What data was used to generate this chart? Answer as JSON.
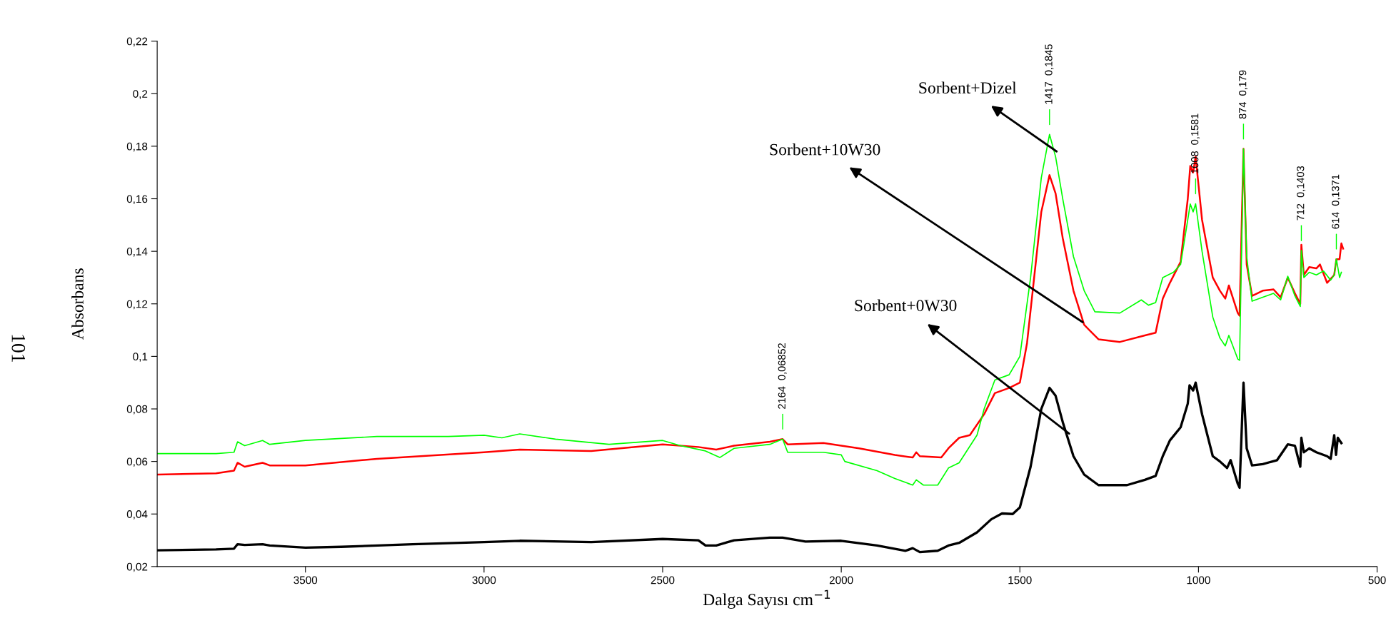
{
  "chart_data": {
    "type": "line",
    "xlabel": "Dalga Sayısı cm$^{−1}$",
    "ylabel": "Absorbans",
    "xlim": [
      3915,
      500
    ],
    "xticks": [
      3500,
      3000,
      2500,
      2000,
      1500,
      1000,
      500
    ],
    "ylim": [
      0.02,
      0.22
    ],
    "yticks": [
      {
        "value": 0.02,
        "label": "0,02"
      },
      {
        "value": 0.04,
        "label": "0,04"
      },
      {
        "value": 0.06,
        "label": "0,06"
      },
      {
        "value": 0.08,
        "label": "0,08"
      },
      {
        "value": 0.1,
        "label": "0,1"
      },
      {
        "value": 0.12,
        "label": "0,12"
      },
      {
        "value": 0.14,
        "label": "0,14"
      },
      {
        "value": 0.16,
        "label": "0,16"
      },
      {
        "value": 0.18,
        "label": "0,18"
      },
      {
        "value": 0.2,
        "label": "0,2"
      },
      {
        "value": 0.22,
        "label": "0,22"
      }
    ],
    "grid": false,
    "legend": false,
    "marker": "none",
    "line_style": "solid",
    "series": [
      {
        "color": "#000000",
        "x": [
          3915,
          3750,
          3700,
          3690,
          3670,
          3620,
          3600,
          3500,
          3400,
          3200,
          3000,
          2900,
          2700,
          2500,
          2400,
          2380,
          2350,
          2300,
          2200,
          2164,
          2100,
          2000,
          1900,
          1820,
          1800,
          1780,
          1730,
          1700,
          1670,
          1620,
          1580,
          1550,
          1520,
          1500,
          1470,
          1440,
          1417,
          1400,
          1380,
          1350,
          1320,
          1280,
          1200,
          1150,
          1120,
          1100,
          1080,
          1050,
          1030,
          1025,
          1015,
          1008,
          990,
          960,
          940,
          920,
          910,
          890,
          885,
          874,
          865,
          850,
          820,
          780,
          750,
          730,
          715,
          712,
          705,
          690,
          670,
          640,
          630,
          620,
          615,
          610,
          600
        ],
        "values": [
          0.0262,
          0.0265,
          0.0268,
          0.0285,
          0.0282,
          0.0285,
          0.028,
          0.0272,
          0.0275,
          0.0285,
          0.0293,
          0.0298,
          0.0293,
          0.0305,
          0.03,
          0.028,
          0.028,
          0.03,
          0.031,
          0.031,
          0.0295,
          0.0298,
          0.028,
          0.026,
          0.027,
          0.0255,
          0.026,
          0.028,
          0.029,
          0.033,
          0.038,
          0.0402,
          0.04,
          0.0425,
          0.058,
          0.08,
          0.088,
          0.085,
          0.075,
          0.062,
          0.055,
          0.051,
          0.051,
          0.053,
          0.0545,
          0.062,
          0.068,
          0.073,
          0.082,
          0.089,
          0.087,
          0.09,
          0.078,
          0.062,
          0.06,
          0.0575,
          0.0605,
          0.0515,
          0.05,
          0.09,
          0.065,
          0.0585,
          0.059,
          0.0605,
          0.0665,
          0.066,
          0.058,
          0.069,
          0.0635,
          0.065,
          0.0635,
          0.062,
          0.061,
          0.07,
          0.0625,
          0.069,
          0.067
        ]
      },
      {
        "color": "#ff0000",
        "x": [
          3915,
          3750,
          3700,
          3690,
          3670,
          3620,
          3600,
          3500,
          3300,
          3000,
          2900,
          2700,
          2500,
          2400,
          2350,
          2300,
          2200,
          2164,
          2150,
          2050,
          2000,
          1950,
          1850,
          1800,
          1790,
          1780,
          1720,
          1700,
          1670,
          1640,
          1600,
          1570,
          1530,
          1500,
          1480,
          1460,
          1440,
          1417,
          1400,
          1380,
          1350,
          1320,
          1280,
          1220,
          1150,
          1120,
          1100,
          1080,
          1050,
          1030,
          1023,
          1015,
          1008,
          990,
          960,
          940,
          925,
          915,
          890,
          885,
          874,
          865,
          850,
          820,
          790,
          770,
          750,
          730,
          715,
          712,
          705,
          690,
          670,
          660,
          640,
          620,
          614,
          605,
          600,
          595
        ],
        "values": [
          0.055,
          0.0555,
          0.0565,
          0.0595,
          0.058,
          0.0595,
          0.0585,
          0.0585,
          0.061,
          0.0635,
          0.0645,
          0.064,
          0.0665,
          0.0655,
          0.0645,
          0.066,
          0.0675,
          0.0685,
          0.0665,
          0.067,
          0.066,
          0.065,
          0.0625,
          0.0615,
          0.0635,
          0.062,
          0.0615,
          0.065,
          0.069,
          0.07,
          0.078,
          0.086,
          0.088,
          0.09,
          0.105,
          0.13,
          0.155,
          0.169,
          0.162,
          0.145,
          0.125,
          0.112,
          0.1065,
          0.1055,
          0.108,
          0.109,
          0.122,
          0.128,
          0.136,
          0.16,
          0.1725,
          0.17,
          0.176,
          0.152,
          0.13,
          0.125,
          0.122,
          0.127,
          0.1165,
          0.1155,
          0.179,
          0.135,
          0.123,
          0.125,
          0.1255,
          0.1225,
          0.13,
          0.124,
          0.12,
          0.1425,
          0.131,
          0.134,
          0.1335,
          0.135,
          0.128,
          0.131,
          0.137,
          0.137,
          0.143,
          0.141
        ]
      },
      {
        "color": "#00ff00",
        "x": [
          3915,
          3750,
          3700,
          3690,
          3670,
          3620,
          3600,
          3500,
          3300,
          3100,
          3000,
          2950,
          2900,
          2800,
          2650,
          2500,
          2450,
          2380,
          2340,
          2300,
          2200,
          2164,
          2150,
          2050,
          2000,
          1990,
          1900,
          1850,
          1800,
          1790,
          1770,
          1730,
          1700,
          1670,
          1620,
          1600,
          1570,
          1530,
          1500,
          1470,
          1440,
          1417,
          1400,
          1380,
          1350,
          1320,
          1290,
          1220,
          1160,
          1140,
          1120,
          1100,
          1070,
          1050,
          1030,
          1023,
          1015,
          1008,
          990,
          960,
          940,
          925,
          915,
          890,
          885,
          874,
          865,
          850,
          820,
          790,
          770,
          750,
          730,
          715,
          712,
          705,
          690,
          670,
          650,
          630,
          620,
          614,
          605,
          600
        ],
        "values": [
          0.063,
          0.063,
          0.0635,
          0.0675,
          0.066,
          0.068,
          0.0665,
          0.068,
          0.0695,
          0.0695,
          0.07,
          0.069,
          0.0705,
          0.0685,
          0.0665,
          0.068,
          0.066,
          0.064,
          0.0615,
          0.065,
          0.0665,
          0.0685,
          0.0635,
          0.0635,
          0.0625,
          0.06,
          0.0565,
          0.0535,
          0.051,
          0.053,
          0.051,
          0.051,
          0.0575,
          0.0595,
          0.07,
          0.08,
          0.091,
          0.093,
          0.1,
          0.13,
          0.168,
          0.1845,
          0.176,
          0.16,
          0.138,
          0.125,
          0.117,
          0.1165,
          0.1215,
          0.1195,
          0.1205,
          0.13,
          0.132,
          0.135,
          0.152,
          0.158,
          0.155,
          0.1581,
          0.14,
          0.115,
          0.107,
          0.104,
          0.108,
          0.099,
          0.0985,
          0.179,
          0.138,
          0.121,
          0.1225,
          0.124,
          0.1215,
          0.1305,
          0.123,
          0.119,
          0.1403,
          0.13,
          0.132,
          0.131,
          0.1325,
          0.129,
          0.131,
          0.1371,
          0.13,
          0.132
        ]
      }
    ],
    "annotations": [
      {
        "text": "Sorbent+Dizel",
        "x": 1397,
        "y": 0.178
      },
      {
        "text": "Sorbent+10W30",
        "x": 1324,
        "y": 0.113
      },
      {
        "text": "Sorbent+0W30",
        "x": 1362,
        "y": 0.0706
      },
      {
        "text": "2164  0,06852",
        "x": 2164,
        "y": 0.06852
      },
      {
        "text": "1417  0,1845",
        "x": 1417,
        "y": 0.1845
      },
      {
        "text": "1008  0,1581",
        "x": 1008,
        "y": 0.1581
      },
      {
        "text": "874  0,179",
        "x": 874,
        "y": 0.179
      },
      {
        "text": "712  0,1403",
        "x": 712,
        "y": 0.1403
      },
      {
        "text": "614  0,1371",
        "x": 614,
        "y": 0.1371
      },
      "101"
    ]
  }
}
